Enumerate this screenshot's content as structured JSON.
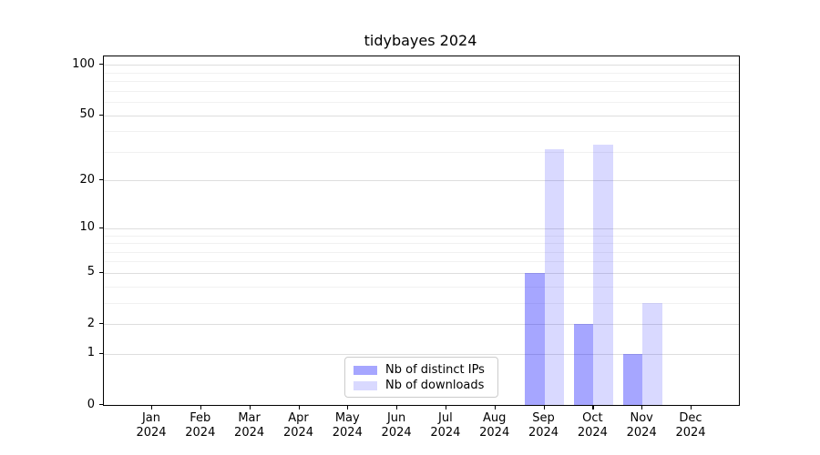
{
  "title": "tidybayes 2024",
  "chart_data": {
    "type": "bar",
    "title": "tidybayes 2024",
    "x_unit": "month",
    "categories": [
      "Jan",
      "Feb",
      "Mar",
      "Apr",
      "May",
      "Jun",
      "Jul",
      "Aug",
      "Sep",
      "Oct",
      "Nov",
      "Dec"
    ],
    "year_label": "2024",
    "series": [
      {
        "name": "Nb of distinct IPs",
        "color": "rgba(0,0,255,0.35)",
        "values": [
          0,
          0,
          0,
          0,
          0,
          0,
          0,
          0,
          5,
          2,
          1,
          0
        ]
      },
      {
        "name": "Nb of downloads",
        "color": "rgba(0,0,255,0.15)",
        "values": [
          0,
          0,
          0,
          0,
          0,
          0,
          0,
          0,
          31,
          33,
          3,
          0
        ]
      }
    ],
    "yscale": "log1p",
    "ylim": [
      0,
      112
    ],
    "yticks": [
      0,
      1,
      2,
      5,
      10,
      20,
      50,
      100
    ],
    "yticks_minor": [
      3,
      4,
      6,
      7,
      8,
      9,
      30,
      40,
      60,
      70,
      80,
      90
    ],
    "grid": true,
    "legend": {
      "position": "lower-center-inside",
      "items": [
        "Nb of distinct IPs",
        "Nb of downloads"
      ]
    },
    "colors": {
      "grid_major": "#dedede",
      "grid_minor": "#f1f1f1",
      "axis": "#000000",
      "background": "#ffffff"
    }
  }
}
